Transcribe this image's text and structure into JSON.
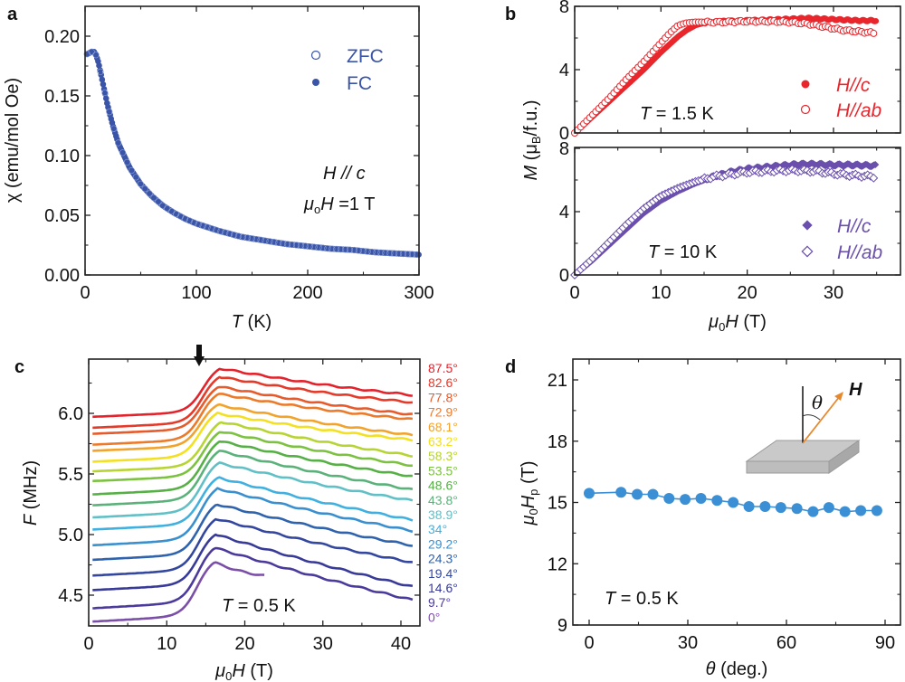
{
  "chart_data": [
    {
      "panel": "a",
      "type": "scatter",
      "xlabel": "T (K)",
      "ylabel": "χ (emu/mol Oe)",
      "xlim": [
        0,
        300
      ],
      "ylim": [
        0,
        0.22
      ],
      "xticks": [
        "0",
        "100",
        "200",
        "300"
      ],
      "yticks": [
        "0.00",
        "0.05",
        "0.10",
        "0.15",
        "0.20"
      ],
      "xtick_values": [
        0,
        100,
        200,
        300
      ],
      "ytick_values": [
        0,
        0.05,
        0.1,
        0.15,
        0.2
      ],
      "annotations": [
        "H // c",
        "μ₀H =1 T"
      ],
      "legend": [
        "ZFC",
        "FC"
      ],
      "legend_position": "top-right",
      "color": "#3a55a8",
      "series": [
        {
          "name": "ZFC",
          "marker": "open-circle",
          "x": [
            1.8,
            4,
            6,
            8,
            10,
            12,
            15,
            20,
            25,
            30,
            40,
            50,
            60,
            70,
            80,
            90,
            100,
            120,
            140,
            160,
            180,
            200,
            220,
            240,
            260,
            280,
            300
          ],
          "y": [
            0.185,
            0.186,
            0.187,
            0.187,
            0.184,
            0.178,
            0.165,
            0.143,
            0.125,
            0.11,
            0.09,
            0.076,
            0.066,
            0.058,
            0.052,
            0.047,
            0.043,
            0.037,
            0.032,
            0.029,
            0.026,
            0.024,
            0.022,
            0.021,
            0.019,
            0.018,
            0.017
          ]
        },
        {
          "name": "FC",
          "marker": "filled-circle",
          "x": [
            1.8,
            4,
            6,
            8,
            10,
            12,
            15,
            20,
            25,
            30,
            40,
            50,
            60,
            70,
            80,
            90,
            100,
            120,
            140,
            160,
            180,
            200,
            220,
            240,
            260,
            280,
            300
          ],
          "y": [
            0.185,
            0.186,
            0.187,
            0.187,
            0.184,
            0.178,
            0.165,
            0.143,
            0.125,
            0.11,
            0.09,
            0.076,
            0.066,
            0.058,
            0.052,
            0.047,
            0.043,
            0.037,
            0.032,
            0.029,
            0.026,
            0.024,
            0.022,
            0.021,
            0.019,
            0.018,
            0.017
          ]
        }
      ]
    },
    {
      "panel": "b-top",
      "type": "scatter",
      "xlabel": "",
      "ylabel": "M (μB/f.u.)",
      "xlim": [
        -1,
        38
      ],
      "ylim": [
        0,
        8
      ],
      "yticks": [
        "0",
        "4",
        "8"
      ],
      "ytick_values": [
        0,
        4,
        8
      ],
      "annotation": "T = 1.5 K",
      "legend": [
        "H//c",
        "H//ab"
      ],
      "legend_position": "bottom-right",
      "color": "#e8262c",
      "series": [
        {
          "name": "H//c",
          "marker": "filled-circle",
          "x": [
            0,
            2,
            4,
            6,
            8,
            10,
            11,
            12,
            13,
            14,
            15,
            17,
            20,
            23,
            25,
            27,
            29,
            31,
            33,
            35
          ],
          "y": [
            0,
            1.0,
            2.0,
            3.0,
            4.0,
            5.1,
            5.6,
            6.1,
            6.5,
            6.8,
            6.95,
            7.05,
            7.1,
            7.15,
            7.2,
            7.25,
            7.2,
            7.15,
            7.1,
            7.1
          ]
        },
        {
          "name": "H//ab",
          "marker": "open-circle",
          "x": [
            0,
            2,
            4,
            6,
            8,
            10,
            11,
            12,
            13,
            14,
            15,
            17,
            20,
            23,
            25,
            27,
            29,
            31,
            33,
            35
          ],
          "y": [
            0,
            1.1,
            2.2,
            3.4,
            4.5,
            5.7,
            6.3,
            6.8,
            6.95,
            7.0,
            7.0,
            7.0,
            7.05,
            7.05,
            7.0,
            6.9,
            6.7,
            6.5,
            6.4,
            6.3
          ]
        }
      ]
    },
    {
      "panel": "b-bottom",
      "type": "scatter",
      "xlabel": "μ0H (T)",
      "ylabel": "M (μB/f.u.)",
      "xlim": [
        -1,
        38
      ],
      "ylim": [
        0,
        8
      ],
      "xticks": [
        "0",
        "10",
        "20",
        "30"
      ],
      "xtick_values": [
        0,
        10,
        20,
        30
      ],
      "yticks": [
        "0",
        "4",
        "8"
      ],
      "ytick_values": [
        0,
        4,
        8
      ],
      "annotation": "T = 10 K",
      "legend": [
        "H//c",
        "H//ab"
      ],
      "legend_position": "bottom-right",
      "color": "#6a4fad",
      "series": [
        {
          "name": "H//c",
          "marker": "filled-diamond",
          "x": [
            0,
            2,
            4,
            6,
            8,
            10,
            12,
            14,
            16,
            18,
            20,
            22,
            24,
            26,
            28,
            30,
            32,
            35
          ],
          "y": [
            0,
            0.9,
            1.9,
            2.9,
            3.9,
            4.7,
            5.3,
            5.8,
            6.2,
            6.5,
            6.7,
            6.8,
            6.9,
            7.0,
            7.0,
            6.95,
            6.95,
            6.9
          ]
        },
        {
          "name": "H//ab",
          "marker": "open-diamond",
          "x": [
            0,
            2,
            4,
            6,
            8,
            10,
            12,
            14,
            16,
            18,
            20,
            22,
            24,
            26,
            28,
            30,
            32,
            35
          ],
          "y": [
            0,
            1.0,
            2.1,
            3.2,
            4.2,
            5.0,
            5.5,
            5.9,
            6.2,
            6.35,
            6.5,
            6.55,
            6.6,
            6.6,
            6.55,
            6.4,
            6.3,
            6.2
          ]
        }
      ]
    },
    {
      "panel": "c",
      "type": "line",
      "xlabel": "μ0H (T)",
      "ylabel": "F (MHz)",
      "xlim": [
        0,
        42.5
      ],
      "ylim": [
        4.25,
        6.45
      ],
      "xticks": [
        "0",
        "10",
        "20",
        "30",
        "40"
      ],
      "xtick_values": [
        0,
        10,
        20,
        30,
        40
      ],
      "yticks": [
        "4.5",
        "5.0",
        "5.5",
        "6.0"
      ],
      "ytick_values": [
        4.5,
        5.0,
        5.5,
        6.0
      ],
      "annotation": "T = 0.5 K",
      "arrow_marker_x": 14,
      "series": [
        {
          "name": "87.5°",
          "color": "#e3222b",
          "start": 5.97,
          "peak": 6.37,
          "end": 6.15,
          "x_end": 41.5
        },
        {
          "name": "82.6°",
          "color": "#e43a2a",
          "start": 5.88,
          "peak": 6.3,
          "end": 6.09,
          "x_end": 41.5
        },
        {
          "name": "77.8°",
          "color": "#e65a2b",
          "start": 5.83,
          "peak": 6.22,
          "end": 5.99,
          "x_end": 41.5
        },
        {
          "name": "72.9°",
          "color": "#ec7a2b",
          "start": 5.74,
          "peak": 6.16,
          "end": 5.95,
          "x_end": 41.5
        },
        {
          "name": "68.1°",
          "color": "#f2a32b",
          "start": 5.69,
          "peak": 6.07,
          "end": 5.82,
          "x_end": 41.5
        },
        {
          "name": "63.2°",
          "color": "#f3e021",
          "start": 5.6,
          "peak": 6.0,
          "end": 5.78,
          "x_end": 41.5
        },
        {
          "name": "58.3°",
          "color": "#b6d433",
          "start": 5.52,
          "peak": 5.93,
          "end": 5.65,
          "x_end": 41.5
        },
        {
          "name": "53.5°",
          "color": "#7cc240",
          "start": 5.44,
          "peak": 5.85,
          "end": 5.57,
          "x_end": 41.5
        },
        {
          "name": "48.6°",
          "color": "#56b046",
          "start": 5.33,
          "peak": 5.77,
          "end": 5.48,
          "x_end": 41.5
        },
        {
          "name": "43.8°",
          "color": "#5ab27a",
          "start": 5.24,
          "peak": 5.69,
          "end": 5.37,
          "x_end": 41.5
        },
        {
          "name": "38.9°",
          "color": "#61c0c6",
          "start": 5.14,
          "peak": 5.59,
          "end": 5.28,
          "x_end": 41.5
        },
        {
          "name": "34°",
          "color": "#3fb0df",
          "start": 5.04,
          "peak": 5.47,
          "end": 5.12,
          "x_end": 41.5
        },
        {
          "name": "29.2°",
          "color": "#3a8fcf",
          "start": 4.91,
          "peak": 5.38,
          "end": 5.03,
          "x_end": 41.5
        },
        {
          "name": "24.3°",
          "color": "#2f63ad",
          "start": 4.79,
          "peak": 5.25,
          "end": 4.91,
          "x_end": 41.5
        },
        {
          "name": "19.4°",
          "color": "#34479f",
          "start": 4.66,
          "peak": 5.13,
          "end": 4.77,
          "x_end": 41.5
        },
        {
          "name": "14.6°",
          "color": "#383a98",
          "start": 4.54,
          "peak": 5.0,
          "end": 4.57,
          "x_end": 41.5
        },
        {
          "name": "9.7°",
          "color": "#4b3a9b",
          "start": 4.39,
          "peak": 4.89,
          "end": 4.46,
          "x_end": 41.5
        },
        {
          "name": "0°",
          "color": "#7b4fa8",
          "start": 4.28,
          "peak": 4.77,
          "end": 4.66,
          "x_end": 22.6
        }
      ]
    },
    {
      "panel": "d",
      "type": "line",
      "xlabel": "θ (deg.)",
      "ylabel": "μ0Hp (T)",
      "xlim": [
        -5,
        95
      ],
      "ylim": [
        9,
        22
      ],
      "xticks": [
        "0",
        "30",
        "60",
        "90"
      ],
      "xtick_values": [
        0,
        30,
        60,
        90
      ],
      "yticks": [
        "9",
        "12",
        "15",
        "18",
        "21"
      ],
      "ytick_values": [
        9,
        12,
        15,
        18,
        21
      ],
      "annotation": "T = 0.5 K",
      "inset": {
        "angle_symbol": "θ",
        "vector_label": "H"
      },
      "color": "#3b8fd4",
      "x": [
        0,
        9.7,
        14.6,
        19.4,
        24.3,
        29.2,
        34,
        38.9,
        43.8,
        48.6,
        53.5,
        58.3,
        63.2,
        68.1,
        72.9,
        77.8,
        82.6,
        87.5
      ],
      "y": [
        15.45,
        15.5,
        15.4,
        15.4,
        15.2,
        15.15,
        15.2,
        15.1,
        15.0,
        14.8,
        14.8,
        14.75,
        14.7,
        14.55,
        14.75,
        14.55,
        14.6,
        14.6
      ]
    }
  ],
  "labels": {
    "a": "a",
    "b": "b",
    "c": "c",
    "d": "d",
    "a_ylabel": "χ (emu/mol Oe)",
    "a_xlabel_T": "T",
    "a_xlabel_unit": " (K)",
    "a_annot1": "H // c",
    "a_annot2_mu": "μ",
    "a_annot2_sub": "o",
    "a_annot2_rest": "H =1 T",
    "a_legend_zfc": "ZFC",
    "a_legend_fc": "FC",
    "b_top_annot_T": "T",
    "b_top_annot_rest": " = 1.5 K",
    "b_bot_annot_T": "T",
    "b_bot_annot_rest": " = 10 K",
    "b_legend_c": "H//c",
    "b_legend_ab": "H//ab",
    "b_ylabel_M": "M",
    "b_ylabel_mu": " (μ",
    "b_ylabel_sub": "B",
    "b_ylabel_rest": "/f.u.)",
    "b_xlabel_mu": "μ",
    "b_xlabel_sub": "0",
    "b_xlabel_H": "H",
    "b_xlabel_unit": " (T)",
    "c_ylabel_F": "F",
    "c_ylabel_unit": " (MHz)",
    "c_annot_T": "T",
    "c_annot_rest": " = 0.5 K",
    "d_ylabel_mu": "μ",
    "d_ylabel_sub0": "0",
    "d_ylabel_H": "H",
    "d_ylabel_subp": "p",
    "d_ylabel_unit": " (T)",
    "d_xlabel_theta": "θ",
    "d_xlabel_unit": " (deg.)",
    "d_annot_T": "T",
    "d_annot_rest": " = 0.5 K",
    "d_inset_theta": "θ",
    "d_inset_H": "H"
  }
}
